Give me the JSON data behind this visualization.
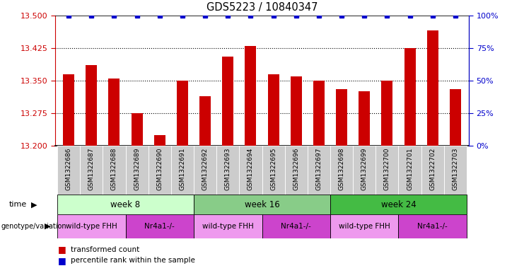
{
  "title": "GDS5223 / 10840347",
  "samples": [
    "GSM1322686",
    "GSM1322687",
    "GSM1322688",
    "GSM1322689",
    "GSM1322690",
    "GSM1322691",
    "GSM1322692",
    "GSM1322693",
    "GSM1322694",
    "GSM1322695",
    "GSM1322696",
    "GSM1322697",
    "GSM1322698",
    "GSM1322699",
    "GSM1322700",
    "GSM1322701",
    "GSM1322702",
    "GSM1322703"
  ],
  "transformed_count": [
    13.365,
    13.385,
    13.355,
    13.275,
    13.225,
    13.35,
    13.315,
    13.405,
    13.43,
    13.365,
    13.36,
    13.35,
    13.33,
    13.325,
    13.35,
    13.425,
    13.465,
    13.33
  ],
  "percentile_rank": [
    100,
    100,
    100,
    100,
    100,
    100,
    100,
    100,
    100,
    100,
    100,
    100,
    100,
    100,
    100,
    100,
    100,
    100
  ],
  "ylim_left": [
    13.2,
    13.5
  ],
  "ylim_right": [
    0,
    100
  ],
  "yticks_left": [
    13.2,
    13.275,
    13.35,
    13.425,
    13.5
  ],
  "yticks_right": [
    0,
    25,
    50,
    75,
    100
  ],
  "bar_color": "#cc0000",
  "dot_color": "#0000cc",
  "background_color": "#ffffff",
  "left_tick_color": "#cc0000",
  "right_tick_color": "#0000cc",
  "time_groups": [
    {
      "label": "week 8",
      "start": 0,
      "end": 5,
      "color": "#ccffcc"
    },
    {
      "label": "week 16",
      "start": 6,
      "end": 11,
      "color": "#88cc88"
    },
    {
      "label": "week 24",
      "start": 12,
      "end": 17,
      "color": "#44bb44"
    }
  ],
  "genotype_groups": [
    {
      "label": "wild-type FHH",
      "start": 0,
      "end": 2,
      "color": "#ee99ee"
    },
    {
      "label": "Nr4a1-/-",
      "start": 3,
      "end": 5,
      "color": "#cc44cc"
    },
    {
      "label": "wild-type FHH",
      "start": 6,
      "end": 8,
      "color": "#ee99ee"
    },
    {
      "label": "Nr4a1-/-",
      "start": 9,
      "end": 11,
      "color": "#cc44cc"
    },
    {
      "label": "wild-type FHH",
      "start": 12,
      "end": 14,
      "color": "#ee99ee"
    },
    {
      "label": "Nr4a1-/-",
      "start": 15,
      "end": 17,
      "color": "#cc44cc"
    }
  ],
  "legend_items": [
    {
      "label": "transformed count",
      "color": "#cc0000"
    },
    {
      "label": "percentile rank within the sample",
      "color": "#0000cc"
    }
  ],
  "xtick_box_color": "#cccccc",
  "xtick_box_edge": "#ffffff",
  "bar_width": 0.5,
  "dot_size": 4,
  "gridline_ls": "dotted",
  "gridline_lw": 0.8
}
